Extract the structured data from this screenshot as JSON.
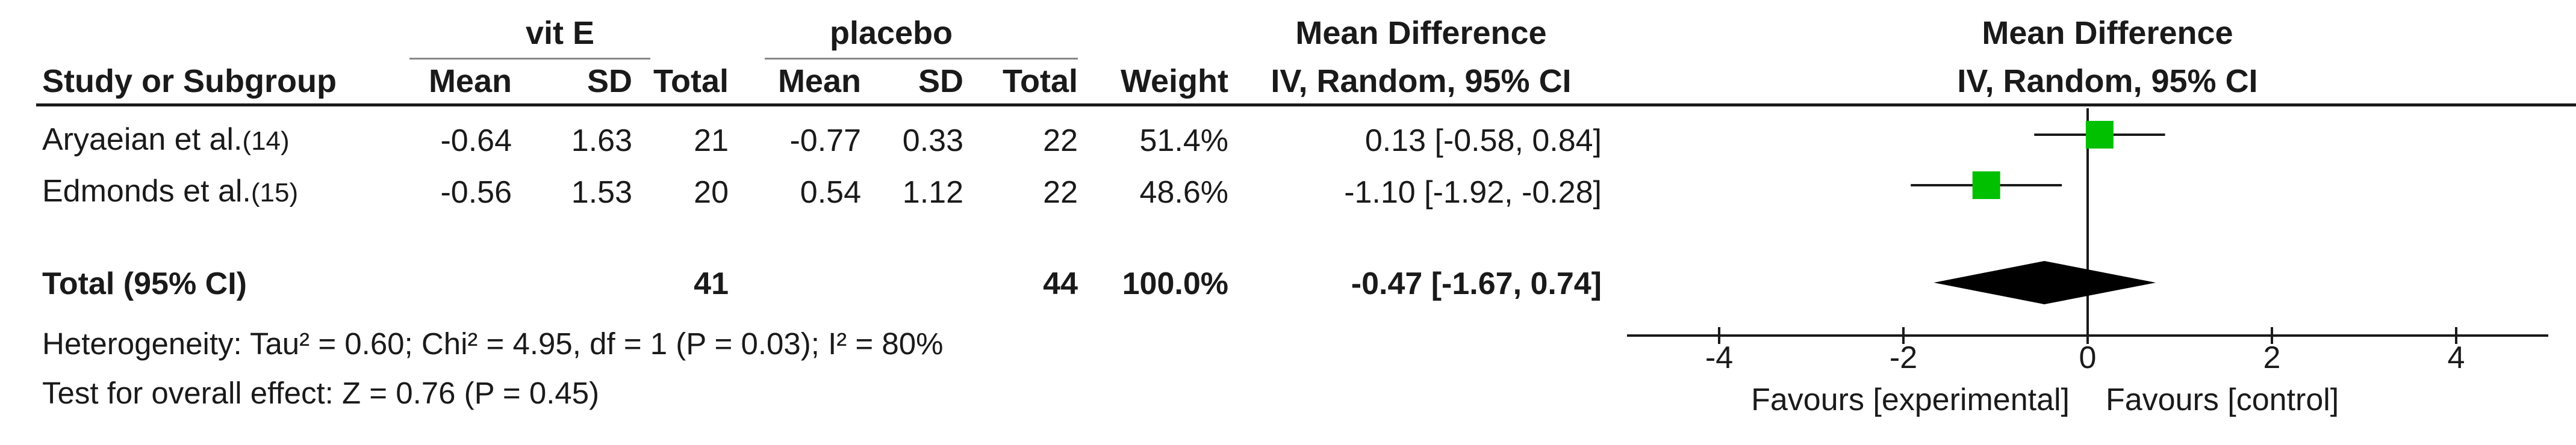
{
  "header": {
    "group1": "vit E",
    "group2": "placebo",
    "md_title": "Mean Difference",
    "plot_title": "Mean Difference",
    "plot_subtitle": "IV, Random, 95% CI",
    "columns": {
      "study": "Study or Subgroup",
      "mean1": "Mean",
      "sd1": "SD",
      "total1": "Total",
      "mean2": "Mean",
      "sd2": "SD",
      "total2": "Total",
      "weight": "Weight",
      "ci": "IV, Random, 95% CI"
    }
  },
  "studies": [
    {
      "name": "Aryaeian et al.",
      "ref": "(14)",
      "mean1": "-0.64",
      "sd1": "1.63",
      "total1": "21",
      "mean2": "-0.77",
      "sd2": "0.33",
      "total2": "22",
      "weight": "51.4%",
      "ci": "0.13 [-0.58, 0.84]"
    },
    {
      "name": "Edmonds et al.",
      "ref": "(15)",
      "mean1": "-0.56",
      "sd1": "1.53",
      "total1": "20",
      "mean2": "0.54",
      "sd2": "1.12",
      "total2": "22",
      "weight": "48.6%",
      "ci": "-1.10 [-1.92, -0.28]"
    }
  ],
  "total": {
    "label": "Total (95% CI)",
    "total1": "41",
    "total2": "44",
    "weight": "100.0%",
    "ci": "-0.47 [-1.67, 0.74]"
  },
  "footer": {
    "heterogeneity": "Heterogeneity: Tau² = 0.60; Chi² = 4.95, df = 1 (P = 0.03); I² = 80%",
    "overall": "Test for overall effect: Z = 0.76 (P = 0.45)"
  },
  "colors": {
    "square": "#00c000",
    "diamond": "#000000",
    "line": "#1a1a1a"
  },
  "chart_data": {
    "type": "forest",
    "title": "Mean Difference",
    "subtitle": "IV, Random, 95% CI",
    "studies": [
      {
        "name": "Aryaeian et al.",
        "estimate": 0.13,
        "lower": -0.58,
        "upper": 0.84,
        "weight": 51.4
      },
      {
        "name": "Edmonds et al.",
        "estimate": -1.1,
        "lower": -1.92,
        "upper": -0.28,
        "weight": 48.6
      }
    ],
    "pooled": {
      "estimate": -0.47,
      "lower": -1.67,
      "upper": 0.74
    },
    "xlim": [
      -5,
      5
    ],
    "ticks": [
      -4,
      -2,
      0,
      2,
      4
    ],
    "tick_labels": [
      "-4",
      "-2",
      "0",
      "2",
      "4"
    ],
    "favours_left": "Favours [experimental]",
    "favours_right": "Favours [control]",
    "grid": false
  }
}
